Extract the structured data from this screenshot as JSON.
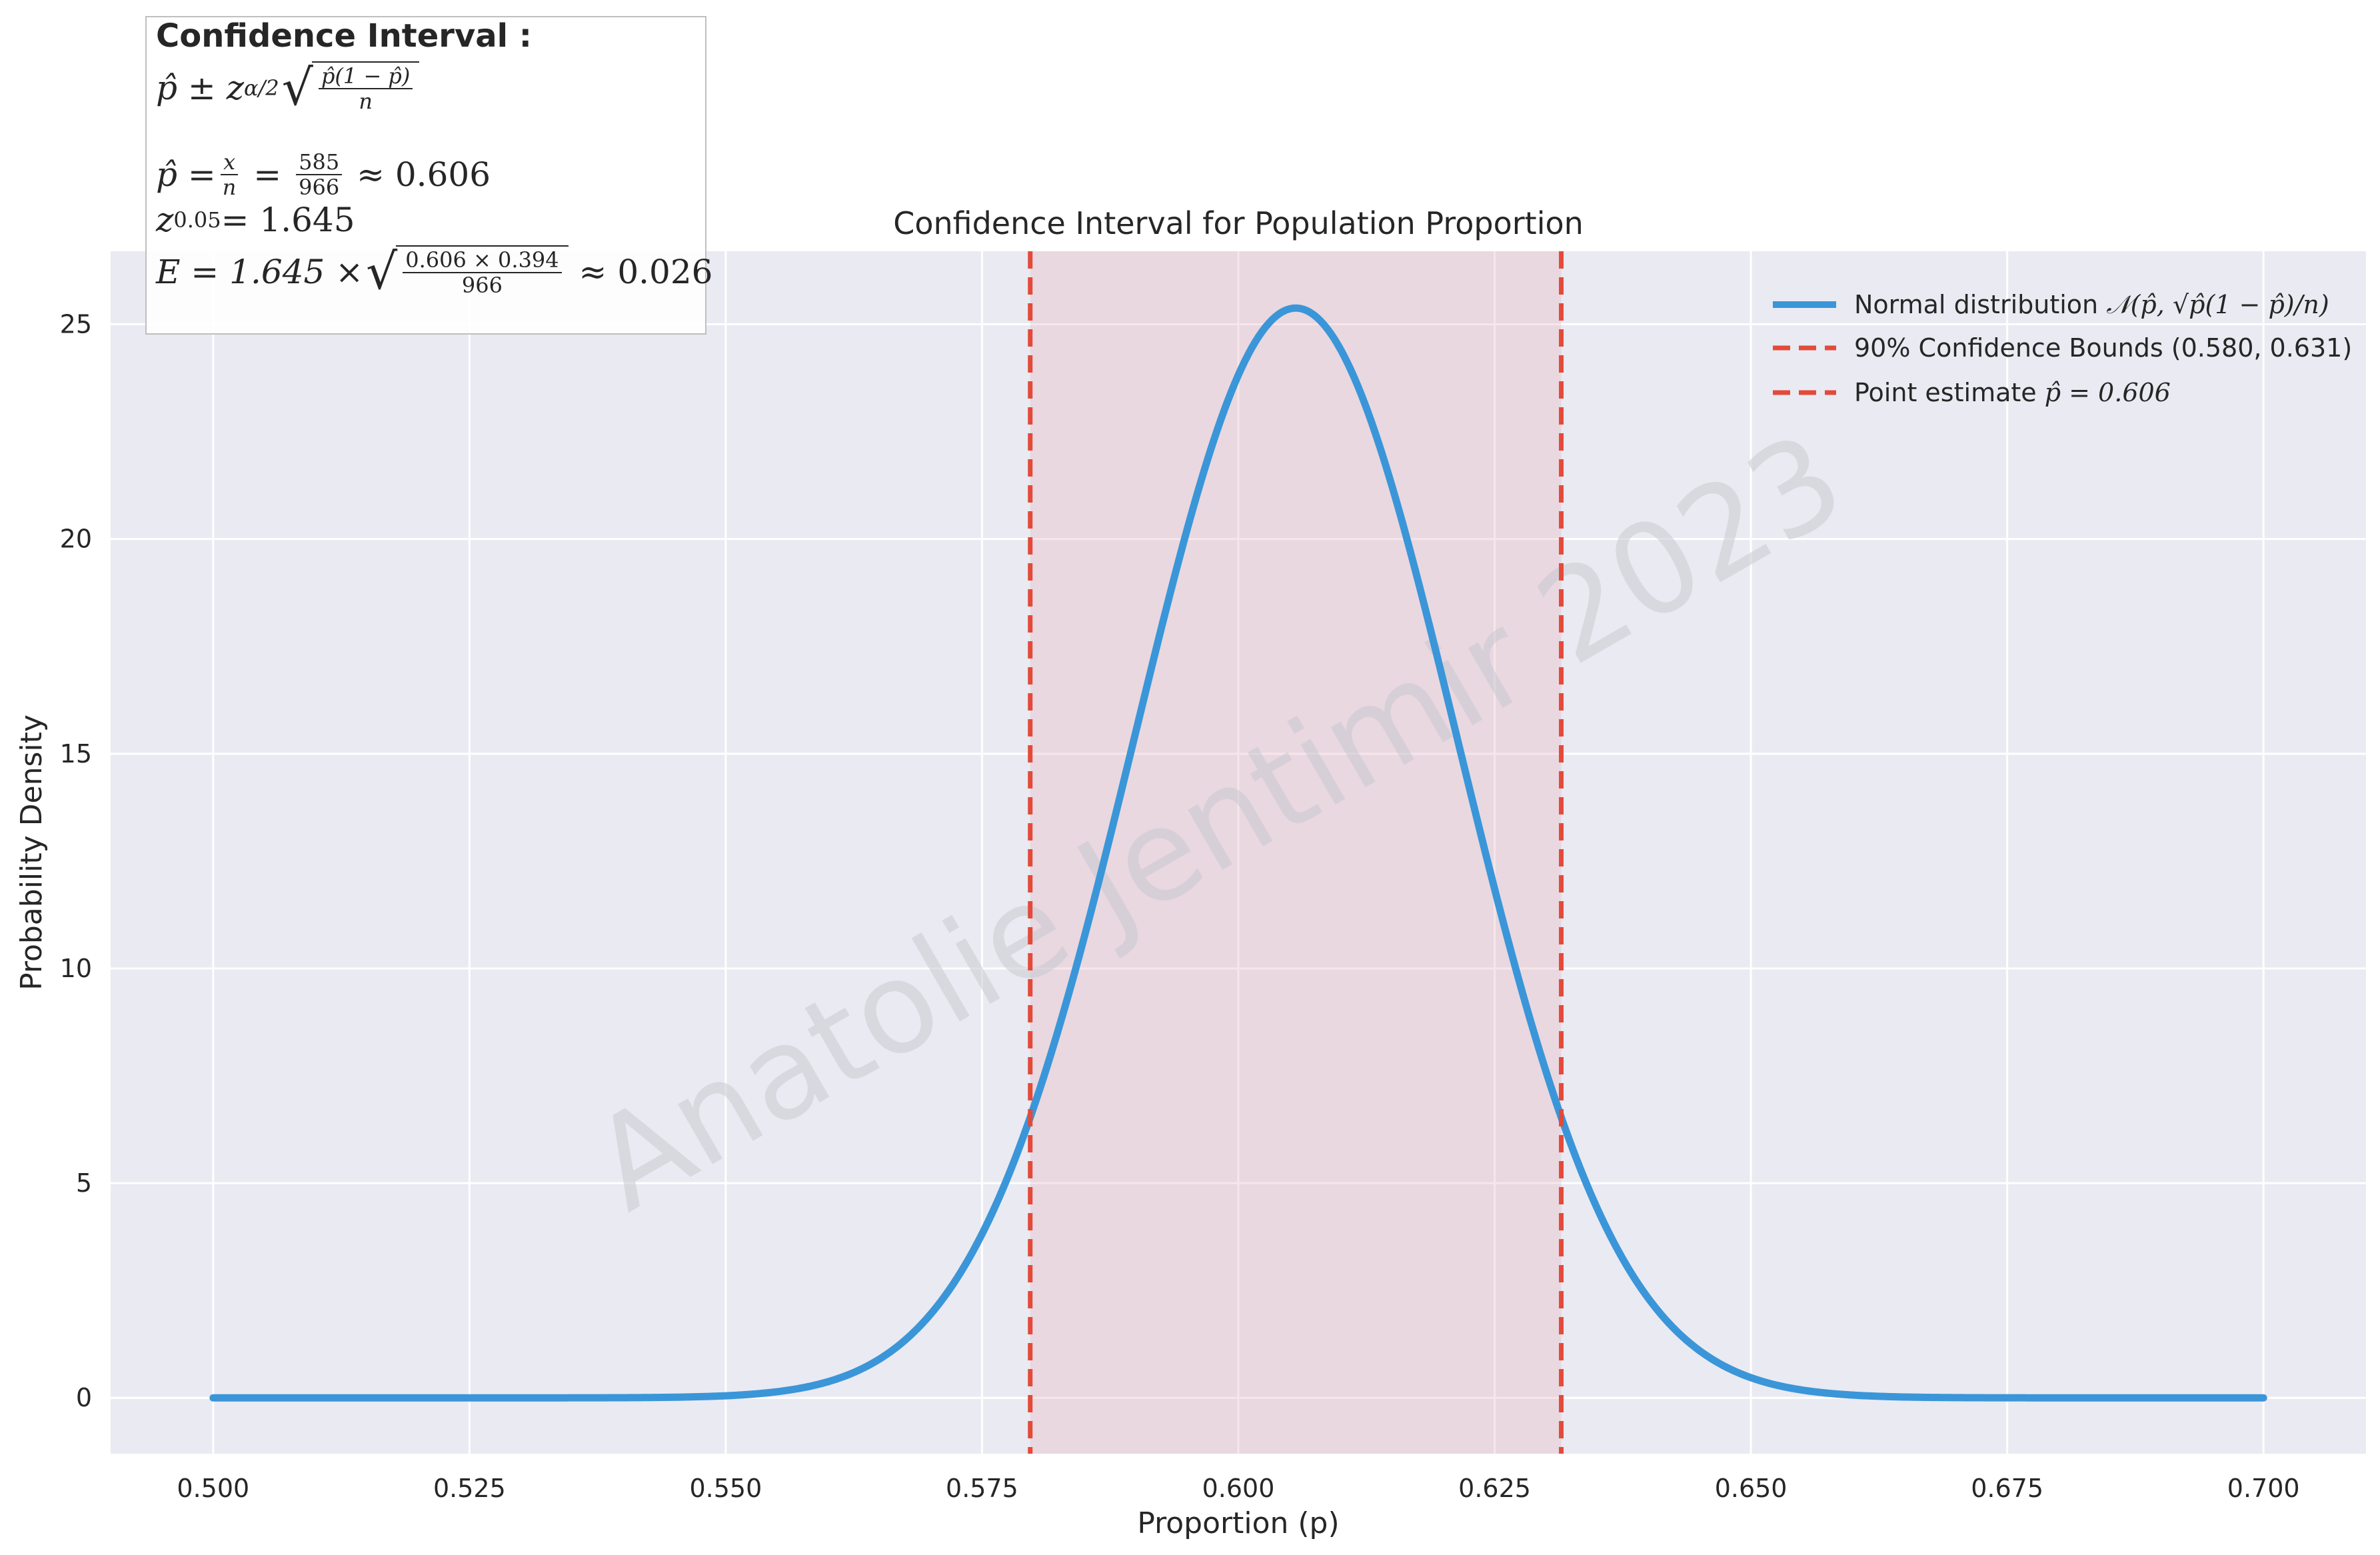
{
  "colors": {
    "background": "#ffffff",
    "plot_bg": "#eaeaf2",
    "grid": "#ffffff",
    "curve": "#3a96d8",
    "bounds": "#e34a3a",
    "shade": "#e8b6c0",
    "watermark": "#c8c8d0"
  },
  "chart_data": {
    "type": "line",
    "title": "Confidence Interval for Population Proportion",
    "xlabel": "Proportion (p)",
    "ylabel": "Probability Density",
    "xlim": [
      0.49,
      0.71
    ],
    "ylim": [
      -1.3,
      26.7
    ],
    "xticks": [
      0.5,
      0.525,
      0.55,
      0.575,
      0.6,
      0.625,
      0.65,
      0.675,
      0.7
    ],
    "xtick_labels": [
      "0.500",
      "0.525",
      "0.550",
      "0.575",
      "0.600",
      "0.625",
      "0.650",
      "0.675",
      "0.700"
    ],
    "yticks": [
      0,
      5,
      10,
      15,
      20,
      25
    ],
    "ytick_labels": [
      "0",
      "5",
      "10",
      "15",
      "20",
      "25"
    ],
    "grid": true,
    "series": [
      {
        "name": "Normal distribution 𝒩(p̂, √(p̂(1 − p̂)/n))",
        "kind": "normal_pdf",
        "mean": 0.6056,
        "sd": 0.01572,
        "x_range": [
          0.5,
          0.7
        ]
      }
    ],
    "confidence_bounds": {
      "name": "90% Confidence Bounds (0.580, 0.631)",
      "lower": 0.5797,
      "upper": 0.6315
    },
    "point_estimate": {
      "name": "Point estimate p̂ = 0.606",
      "value": 0.606
    },
    "legend_position": "top-right",
    "watermark": "Anatolie Jentimir 2023"
  },
  "legend": {
    "normal_prefix": "Normal distribution ",
    "normal_math": "𝒩(p̂, √p̂(1 − p̂)/n)",
    "bounds_label": "90% Confidence Bounds (0.580, 0.631)",
    "point_prefix": "Point estimate ",
    "point_math": "p̂ = 0.606"
  },
  "formula_box": {
    "title": "Confidence Interval :",
    "line1_lead": "p̂ ± z",
    "line1_sub": "α/2",
    "line1_num": "p̂(1 − p̂)",
    "line1_den": "n",
    "line2_lead": "p̂ = ",
    "line2_frac1_num": "x",
    "line2_frac1_den": "n",
    "line2_frac2_num": "585",
    "line2_frac2_den": "966",
    "line2_tail": "≈ 0.606",
    "line3_lead": "z",
    "line3_sub": "0.05",
    "line3_tail": " = 1.645",
    "line4_lead": "E = 1.645 × ",
    "line4_num": "0.606 × 0.394",
    "line4_den": "966",
    "line4_tail": "≈ 0.026"
  }
}
